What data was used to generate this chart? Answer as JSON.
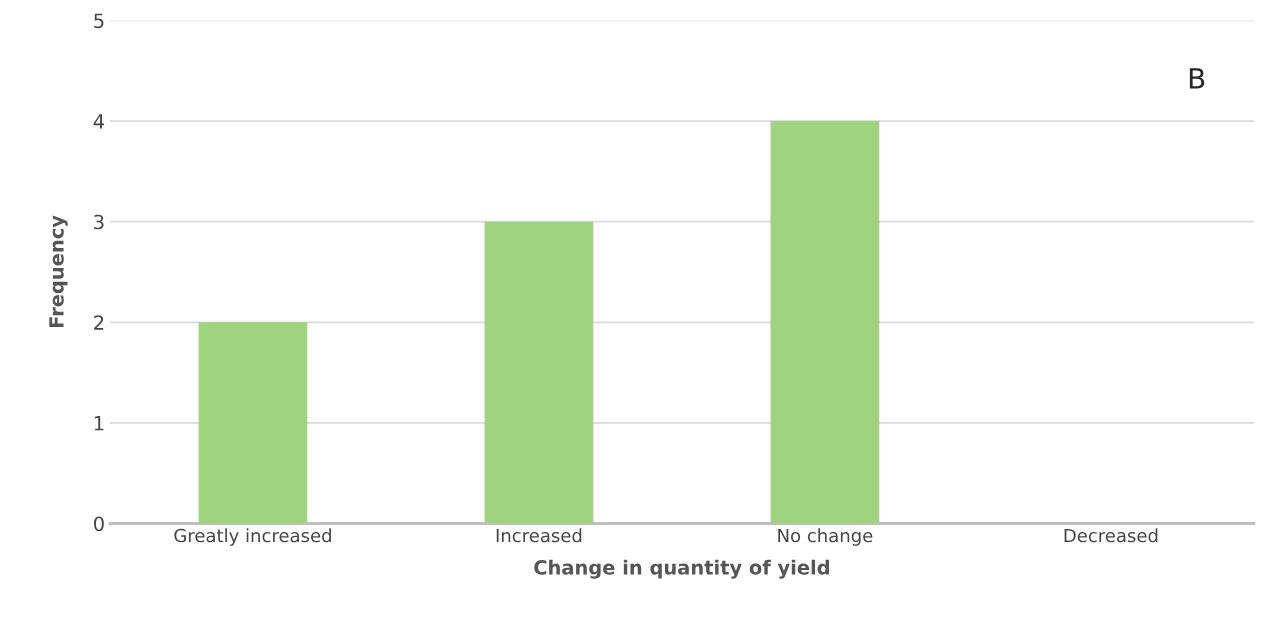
{
  "chart_data": {
    "type": "bar",
    "xlabel": "Change in quantity of yield",
    "ylabel": "Frequency",
    "categories": [
      "Greatly increased",
      "Increased",
      "No change",
      "Decreased"
    ],
    "values": [
      2,
      3,
      4,
      0
    ],
    "color": "#9fd37f",
    "ylim": [
      0,
      5
    ],
    "yticks": [
      0,
      1,
      2,
      3,
      4,
      5
    ],
    "grid": "y",
    "annotations": [
      "B"
    ]
  }
}
